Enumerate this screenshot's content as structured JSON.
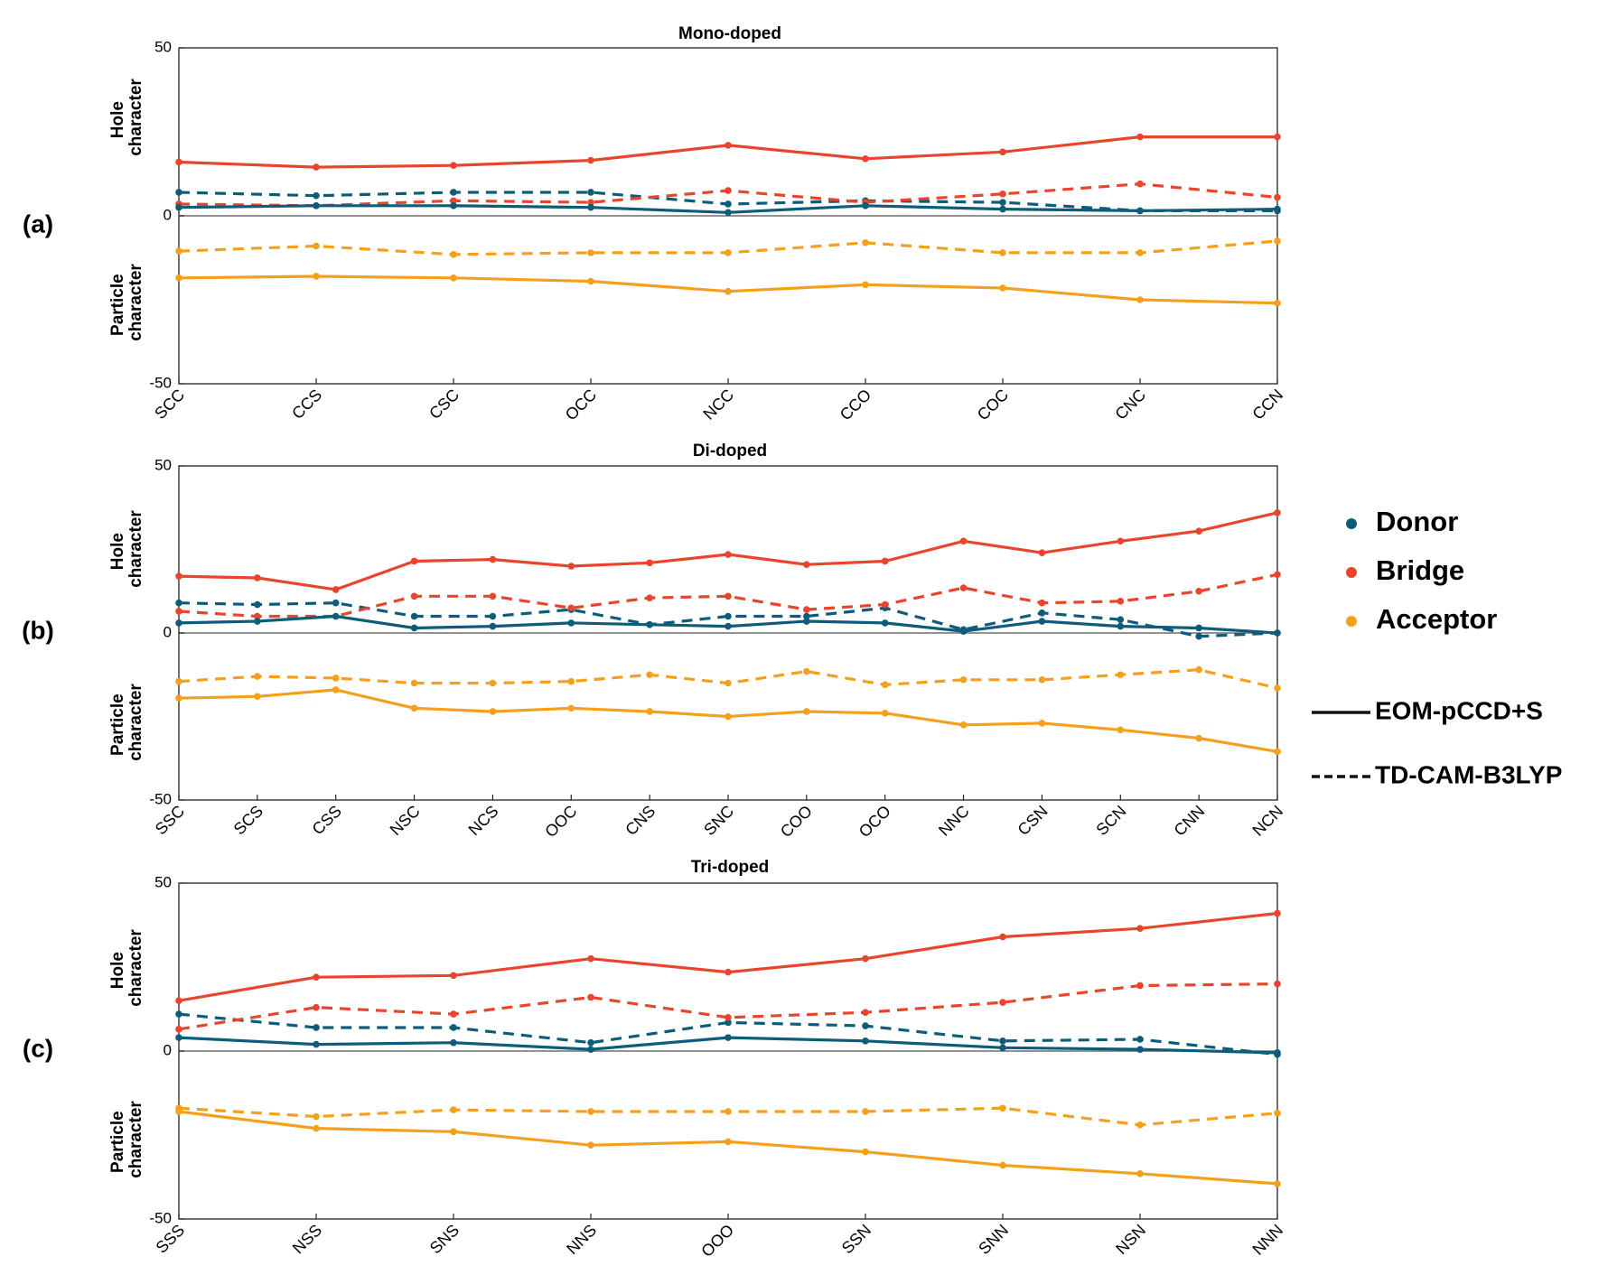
{
  "colors": {
    "donor": "#0d5c7a",
    "bridge": "#e8452c",
    "acceptor": "#f5a01c",
    "axis": "#222222",
    "zero_line": "#6e6e6e"
  },
  "legend": {
    "groups": [
      {
        "key": "donor",
        "label": "Donor"
      },
      {
        "key": "bridge",
        "label": "Bridge"
      },
      {
        "key": "acceptor",
        "label": "Acceptor"
      }
    ],
    "methods": [
      {
        "style": "solid",
        "label": "EOM-pCCD+S"
      },
      {
        "style": "dashed",
        "label": "TD-CAM-B3LYP"
      }
    ]
  },
  "chart_data": [
    {
      "type": "line",
      "panel_label": "(a)",
      "title": "Mono-doped",
      "ylabel_top": [
        "Hole",
        "character"
      ],
      "ylabel_bottom": [
        "Particle",
        "character"
      ],
      "ylim": [
        -50,
        50
      ],
      "yticks": [
        -50,
        0,
        50
      ],
      "categories": [
        "SCC",
        "CCS",
        "CSC",
        "OCC",
        "NCC",
        "CCO",
        "COC",
        "CNC",
        "CCN"
      ],
      "series": [
        {
          "name": "Donor",
          "group": "donor",
          "method": "EOM-pCCD+S",
          "values": [
            2.5,
            3,
            3,
            2.5,
            1,
            3,
            2,
            1.5,
            2
          ]
        },
        {
          "name": "Bridge",
          "group": "bridge",
          "method": "EOM-pCCD+S",
          "values": [
            16,
            14.5,
            15,
            16.5,
            21,
            17,
            19,
            23.5,
            23.5
          ]
        },
        {
          "name": "Acceptor",
          "group": "acceptor",
          "method": "EOM-pCCD+S",
          "values": [
            -18.5,
            -18,
            -18.5,
            -19.5,
            -22.5,
            -20.5,
            -21.5,
            -25,
            -26
          ]
        },
        {
          "name": "Donor",
          "group": "donor",
          "method": "TD-CAM-B3LYP",
          "values": [
            7,
            6,
            7,
            7,
            3.5,
            4.5,
            4,
            1.5,
            1.5
          ]
        },
        {
          "name": "Bridge",
          "group": "bridge",
          "method": "TD-CAM-B3LYP",
          "values": [
            3.5,
            3,
            4.5,
            4,
            7.5,
            4,
            6.5,
            9.5,
            5.5
          ]
        },
        {
          "name": "Acceptor",
          "group": "acceptor",
          "method": "TD-CAM-B3LYP",
          "values": [
            -10.5,
            -9,
            -11.5,
            -11,
            -11,
            -8,
            -11,
            -11,
            -7.5
          ]
        }
      ]
    },
    {
      "type": "line",
      "panel_label": "(b)",
      "title": "Di-doped",
      "ylabel_top": [
        "Hole",
        "character"
      ],
      "ylabel_bottom": [
        "Particle",
        "character"
      ],
      "ylim": [
        -50,
        50
      ],
      "yticks": [
        -50,
        0,
        50
      ],
      "categories": [
        "SSC",
        "SCS",
        "CSS",
        "NSC",
        "NCS",
        "OOC",
        "CNS",
        "SNC",
        "COO",
        "OCO",
        "NNC",
        "CSN",
        "SCN",
        "CNN",
        "NCN"
      ],
      "series": [
        {
          "name": "Donor",
          "group": "donor",
          "method": "EOM-pCCD+S",
          "values": [
            3,
            3.5,
            5,
            1.5,
            2,
            3,
            2.5,
            2,
            3.5,
            3,
            0.5,
            3.5,
            2,
            1.5,
            0
          ]
        },
        {
          "name": "Bridge",
          "group": "bridge",
          "method": "EOM-pCCD+S",
          "values": [
            17,
            16.5,
            13,
            21.5,
            22,
            20,
            21,
            23.5,
            20.5,
            21.5,
            27.5,
            24,
            27.5,
            30.5,
            36
          ]
        },
        {
          "name": "Acceptor",
          "group": "acceptor",
          "method": "EOM-pCCD+S",
          "values": [
            -19.5,
            -19,
            -17,
            -22.5,
            -23.5,
            -22.5,
            -23.5,
            -25,
            -23.5,
            -24,
            -27.5,
            -27,
            -29,
            -31.5,
            -35.5
          ]
        },
        {
          "name": "Donor",
          "group": "donor",
          "method": "TD-CAM-B3LYP",
          "values": [
            9,
            8.5,
            9,
            5,
            5,
            7,
            2.5,
            5,
            5,
            7.5,
            1,
            6,
            4,
            -1,
            0
          ]
        },
        {
          "name": "Bridge",
          "group": "bridge",
          "method": "TD-CAM-B3LYP",
          "values": [
            6.5,
            5,
            5,
            11,
            11,
            7.5,
            10.5,
            11,
            7,
            8.5,
            13.5,
            9,
            9.5,
            12.5,
            17.5
          ]
        },
        {
          "name": "Acceptor",
          "group": "acceptor",
          "method": "TD-CAM-B3LYP",
          "values": [
            -14.5,
            -13,
            -13.5,
            -15,
            -15,
            -14.5,
            -12.5,
            -15,
            -11.5,
            -15.5,
            -14,
            -14,
            -12.5,
            -11,
            -16.5
          ]
        }
      ]
    },
    {
      "type": "line",
      "panel_label": "(c)",
      "title": "Tri-doped",
      "ylabel_top": [
        "Hole",
        "character"
      ],
      "ylabel_bottom": [
        "Particle",
        "character"
      ],
      "ylim": [
        -50,
        50
      ],
      "yticks": [
        -50,
        0,
        50
      ],
      "categories": [
        "SSS",
        "NSS",
        "SNS",
        "NNS",
        "OOO",
        "SSN",
        "SNN",
        "NSN",
        "NNN"
      ],
      "series": [
        {
          "name": "Donor",
          "group": "donor",
          "method": "EOM-pCCD+S",
          "values": [
            4,
            2,
            2.5,
            0.5,
            4,
            3,
            1,
            0.5,
            -0.5
          ]
        },
        {
          "name": "Bridge",
          "group": "bridge",
          "method": "EOM-pCCD+S",
          "values": [
            15,
            22,
            22.5,
            27.5,
            23.5,
            27.5,
            34,
            36.5,
            41
          ]
        },
        {
          "name": "Acceptor",
          "group": "acceptor",
          "method": "EOM-pCCD+S",
          "values": [
            -18,
            -23,
            -24,
            -28,
            -27,
            -30,
            -34,
            -36.5,
            -39.5
          ]
        },
        {
          "name": "Donor",
          "group": "donor",
          "method": "TD-CAM-B3LYP",
          "values": [
            11,
            7,
            7,
            2.5,
            8.5,
            7.5,
            3,
            3.5,
            -1
          ]
        },
        {
          "name": "Bridge",
          "group": "bridge",
          "method": "TD-CAM-B3LYP",
          "values": [
            6.5,
            13,
            11,
            16,
            10,
            11.5,
            14.5,
            19.5,
            20
          ]
        },
        {
          "name": "Acceptor",
          "group": "acceptor",
          "method": "TD-CAM-B3LYP",
          "values": [
            -17,
            -19.5,
            -17.5,
            -18,
            -18,
            -18,
            -17,
            -22,
            -18.5
          ]
        }
      ]
    }
  ]
}
